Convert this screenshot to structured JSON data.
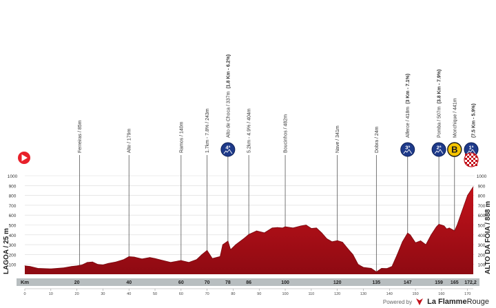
{
  "profile": {
    "start_label": "LAGOA / 25 m",
    "finish_label": "ALTO DA FOIA / 888 m",
    "km_label": "Km",
    "colors": {
      "fill": "#c3121b",
      "fill_dark": "#8e0a12",
      "band": "#b8bec0",
      "marker": "#555555",
      "start_badge": "#e8202a",
      "climb_badge": "#1e3a8a",
      "sprint_badge": "#f5c400"
    }
  },
  "chart_data": {
    "type": "area",
    "x_unit": "km",
    "y_unit": "m",
    "ylim": [
      0,
      1000
    ],
    "xlim": [
      0,
      172.2
    ],
    "y_ticks": [
      "1000",
      "900",
      "800",
      "700",
      "600",
      "500",
      "400",
      "300",
      "200",
      "100"
    ],
    "x_ticks": [
      "0",
      "10",
      "20",
      "30",
      "40",
      "50",
      "60",
      "70",
      "80",
      "90",
      "100",
      "110",
      "120",
      "130",
      "140",
      "150",
      "160",
      "170"
    ],
    "band_ticks": [
      "20",
      "40",
      "60",
      "70",
      "78",
      "86",
      "100",
      "120",
      "135",
      "147",
      "159",
      "165",
      "172,2"
    ],
    "band_tick_km": [
      20,
      40,
      60,
      70,
      78,
      86,
      100,
      120,
      135,
      147,
      159,
      165,
      172.2
    ],
    "elevation": [
      [
        0,
        85
      ],
      [
        2,
        80
      ],
      [
        5,
        60
      ],
      [
        10,
        55
      ],
      [
        15,
        65
      ],
      [
        18,
        80
      ],
      [
        20,
        85
      ],
      [
        22,
        95
      ],
      [
        24,
        120
      ],
      [
        26,
        125
      ],
      [
        28,
        100
      ],
      [
        30,
        95
      ],
      [
        32,
        110
      ],
      [
        35,
        125
      ],
      [
        38,
        150
      ],
      [
        40,
        179
      ],
      [
        42,
        175
      ],
      [
        45,
        155
      ],
      [
        48,
        170
      ],
      [
        50,
        160
      ],
      [
        53,
        140
      ],
      [
        56,
        120
      ],
      [
        59,
        135
      ],
      [
        60,
        140
      ],
      [
        63,
        120
      ],
      [
        66,
        150
      ],
      [
        68,
        200
      ],
      [
        70,
        243
      ],
      [
        72,
        160
      ],
      [
        75,
        180
      ],
      [
        76,
        300
      ],
      [
        78,
        337
      ],
      [
        79,
        250
      ],
      [
        81,
        300
      ],
      [
        84,
        360
      ],
      [
        86,
        404
      ],
      [
        89,
        440
      ],
      [
        92,
        420
      ],
      [
        95,
        470
      ],
      [
        97,
        475
      ],
      [
        99,
        470
      ],
      [
        100,
        482
      ],
      [
        103,
        470
      ],
      [
        106,
        490
      ],
      [
        108,
        500
      ],
      [
        110,
        465
      ],
      [
        112,
        470
      ],
      [
        114,
        420
      ],
      [
        116,
        360
      ],
      [
        118,
        330
      ],
      [
        120,
        341
      ],
      [
        122,
        325
      ],
      [
        124,
        260
      ],
      [
        126,
        200
      ],
      [
        128,
        100
      ],
      [
        130,
        70
      ],
      [
        133,
        60
      ],
      [
        135,
        24
      ],
      [
        137,
        60
      ],
      [
        139,
        58
      ],
      [
        141,
        80
      ],
      [
        143,
        200
      ],
      [
        145,
        330
      ],
      [
        147,
        418
      ],
      [
        148,
        400
      ],
      [
        150,
        320
      ],
      [
        152,
        340
      ],
      [
        154,
        300
      ],
      [
        156,
        400
      ],
      [
        158,
        480
      ],
      [
        159,
        507
      ],
      [
        160,
        500
      ],
      [
        161,
        490
      ],
      [
        162,
        460
      ],
      [
        163,
        470
      ],
      [
        165,
        441
      ],
      [
        166,
        500
      ],
      [
        168,
        650
      ],
      [
        170,
        800
      ],
      [
        172.2,
        888
      ]
    ],
    "waypoints": [
      {
        "km": 21,
        "name": "Ferreiras / 85m"
      },
      {
        "km": 40,
        "name": "Alte / 179m"
      },
      {
        "km": 60,
        "name": "Ramos / 140m"
      },
      {
        "km": 70,
        "name": "1.7km - 7.8% / 243m"
      },
      {
        "km": 78,
        "name": "Alto de Choca / 337m",
        "detail": "(1.8 Km - 6.2%)",
        "category": "4ª"
      },
      {
        "km": 86,
        "name": "5.2km - 4.9% / 404m"
      },
      {
        "km": 100,
        "name": "Boucinhos / 482m"
      },
      {
        "km": 120,
        "name": "Nave / 341m"
      },
      {
        "km": 135,
        "name": "Dobra / 24m"
      },
      {
        "km": 147,
        "name": "Alferce / 418m",
        "detail": "(3 Km - 7.1%)",
        "category": "3ª"
      },
      {
        "km": 159,
        "name": "Pomba / 507m",
        "detail": "(3.8 Km - 7.9%)",
        "category": "2ª"
      },
      {
        "km": 165,
        "name": "Monchique / 441m",
        "category": "B"
      },
      {
        "km": 172.2,
        "detail": "(7.5 Km - 5.9%)",
        "category": "1ª"
      }
    ]
  },
  "footer": {
    "powered_by": "Powered by",
    "brand_bold": "La Flamme",
    "brand_light": "Rouge"
  }
}
